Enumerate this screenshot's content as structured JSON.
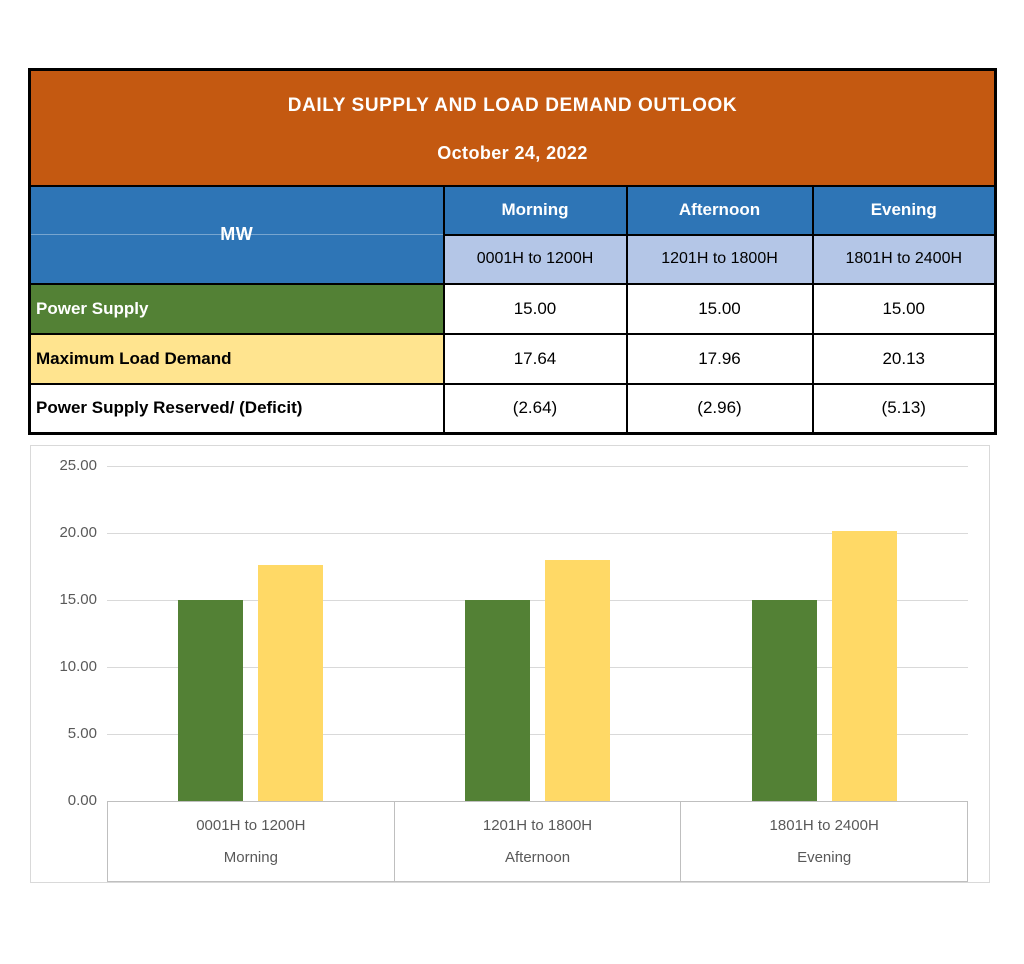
{
  "header": {
    "title": "DAILY SUPPLY AND LOAD DEMAND OUTLOOK",
    "date": "October 24, 2022"
  },
  "table": {
    "unit_label": "MW",
    "columns": [
      {
        "label": "Morning",
        "time_range": "0001H to 1200H"
      },
      {
        "label": "Afternoon",
        "time_range": "1201H to 1800H"
      },
      {
        "label": "Evening",
        "time_range": "1801H to 2400H"
      }
    ],
    "rows": [
      {
        "label": "Power Supply",
        "values": [
          "15.00",
          "15.00",
          "15.00"
        ]
      },
      {
        "label": "Maximum Load Demand",
        "values": [
          "17.64",
          "17.96",
          "20.13"
        ]
      },
      {
        "label": "Power Supply Reserved/ (Deficit)",
        "values": [
          "(2.64)",
          "(2.96)",
          "(5.13)"
        ]
      }
    ]
  },
  "chart_data": {
    "type": "bar",
    "categories": [
      "0001H to 1200H",
      "1201H to 1800H",
      "1801H to 2400H"
    ],
    "category_sublabels": [
      "Morning",
      "Afternoon",
      "Evening"
    ],
    "series": [
      {
        "name": "Power Supply",
        "values": [
          15.0,
          15.0,
          15.0
        ],
        "color": "#538135"
      },
      {
        "name": "Maximum Load Demand",
        "values": [
          17.64,
          17.96,
          20.13
        ],
        "color": "#FFD966"
      }
    ],
    "title": "",
    "xlabel": "",
    "ylabel": "",
    "ylim": [
      0,
      25
    ],
    "ytick_step": 5,
    "ytick_labels": [
      "0.00",
      "5.00",
      "10.00",
      "15.00",
      "20.00",
      "25.00"
    ],
    "grid": true,
    "legend_position": "none"
  },
  "colors": {
    "title_bg": "#C45911",
    "title_text": "#FFFFFF",
    "column_header_bg": "#2E75B6",
    "column_header_text": "#FFFFFF",
    "subheader_bg": "#B4C6E7",
    "supply_row_bg": "#538135",
    "supply_row_text": "#FFFFFF",
    "demand_row_bg": "#FFE48F",
    "bar_green": "#538135",
    "bar_yellow": "#FFD966",
    "chart_text": "#595959",
    "gridline": "#D9D9D9",
    "axis_line": "#BFBFBF"
  }
}
